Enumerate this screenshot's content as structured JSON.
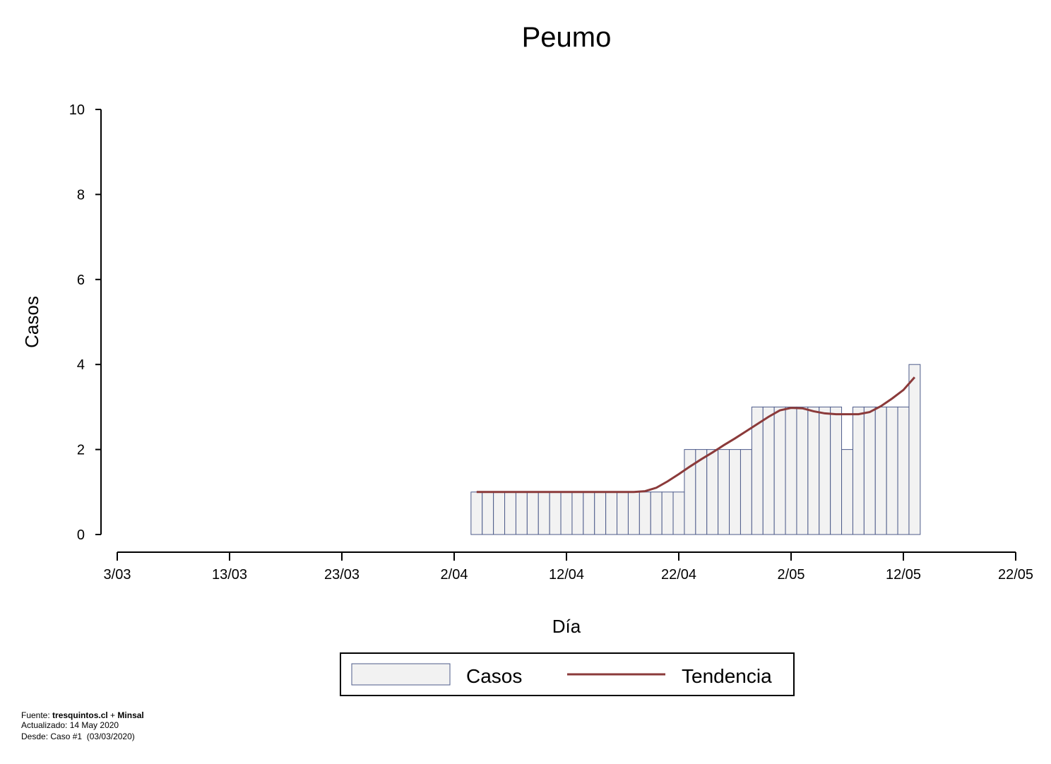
{
  "chart_data": {
    "type": "bar",
    "title": "Peumo",
    "xlabel": "Día",
    "ylabel": "Casos",
    "x": [
      "4/04",
      "5/04",
      "6/04",
      "7/04",
      "8/04",
      "9/04",
      "10/04",
      "11/04",
      "12/04",
      "13/04",
      "14/04",
      "15/04",
      "16/04",
      "17/04",
      "18/04",
      "19/04",
      "20/04",
      "21/04",
      "22/04",
      "23/04",
      "24/04",
      "25/04",
      "26/04",
      "27/04",
      "28/04",
      "29/04",
      "30/04",
      "1/05",
      "2/05",
      "3/05",
      "4/05",
      "5/05",
      "6/05",
      "7/05",
      "8/05",
      "9/05",
      "10/05",
      "11/05",
      "12/05",
      "13/05"
    ],
    "series": [
      {
        "name": "Casos",
        "type": "bar",
        "color": "#f2f2f2",
        "edgecolor": "#4d5b8a",
        "values": [
          1,
          1,
          1,
          1,
          1,
          1,
          1,
          1,
          1,
          1,
          1,
          1,
          1,
          1,
          1,
          1,
          1,
          1,
          1,
          2,
          2,
          2,
          2,
          2,
          2,
          3,
          3,
          3,
          3,
          3,
          3,
          3,
          3,
          2,
          3,
          3,
          3,
          3,
          3,
          4
        ]
      },
      {
        "name": "Tendencia",
        "type": "line",
        "color": "#8b3a3a",
        "values": [
          1,
          1,
          1,
          1,
          1,
          1,
          1,
          1,
          1,
          1,
          1,
          1,
          1,
          1,
          1,
          1.02,
          1.1,
          1.25,
          1.42,
          1.6,
          1.77,
          1.93,
          2.1,
          2.26,
          2.43,
          2.6,
          2.77,
          2.92,
          2.98,
          2.97,
          2.9,
          2.85,
          2.83,
          2.83,
          2.83,
          2.88,
          3.02,
          3.2,
          3.4,
          3.7
        ]
      }
    ],
    "xlim": [
      "3/03",
      "22/05"
    ],
    "xticks": [
      "3/03",
      "13/03",
      "23/03",
      "2/04",
      "12/04",
      "22/04",
      "2/05",
      "12/05",
      "22/05"
    ],
    "ylim": [
      0,
      10
    ],
    "yticks": [
      0,
      2,
      4,
      6,
      8,
      10
    ],
    "grid": false,
    "legend": "bottom"
  },
  "footer": {
    "source": [
      "Fuente: ",
      "tresquintos.cl",
      " + ",
      "Minsal"
    ],
    "updated": "Actualizado: 14 May 2020",
    "since": "Desde: Caso #1  (03/03/2020)"
  }
}
